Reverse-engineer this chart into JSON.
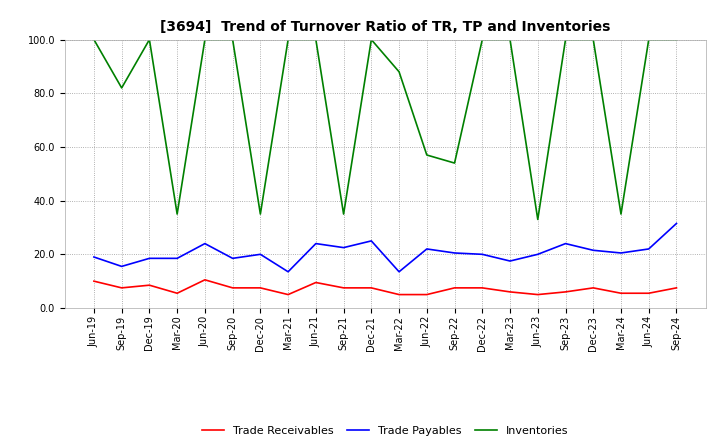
{
  "title": "[3694]  Trend of Turnover Ratio of TR, TP and Inventories",
  "xlabels": [
    "Jun-19",
    "Sep-19",
    "Dec-19",
    "Mar-20",
    "Jun-20",
    "Sep-20",
    "Dec-20",
    "Mar-21",
    "Jun-21",
    "Sep-21",
    "Dec-21",
    "Mar-22",
    "Jun-22",
    "Sep-22",
    "Dec-22",
    "Mar-23",
    "Jun-23",
    "Sep-23",
    "Dec-23",
    "Mar-24",
    "Jun-24",
    "Sep-24"
  ],
  "trade_receivables": [
    10.0,
    7.5,
    8.5,
    5.5,
    10.5,
    7.5,
    7.5,
    5.0,
    9.5,
    7.5,
    7.5,
    5.0,
    5.0,
    7.5,
    7.5,
    6.0,
    5.0,
    6.0,
    7.5,
    5.5,
    5.5,
    7.5
  ],
  "trade_payables": [
    19.0,
    15.5,
    18.5,
    18.5,
    24.0,
    18.5,
    20.0,
    13.5,
    24.0,
    22.5,
    25.0,
    13.5,
    22.0,
    20.5,
    20.0,
    17.5,
    20.0,
    24.0,
    21.5,
    20.5,
    22.0,
    31.5
  ],
  "inventories": [
    100.0,
    82.0,
    100.0,
    35.0,
    100.0,
    100.0,
    35.0,
    100.0,
    100.0,
    35.0,
    100.0,
    88.0,
    57.0,
    54.0,
    100.0,
    100.0,
    33.0,
    100.0,
    100.0,
    35.0,
    100.0,
    100.0
  ],
  "ylim": [
    0.0,
    100.0
  ],
  "yticks": [
    0.0,
    20.0,
    40.0,
    60.0,
    80.0,
    100.0
  ],
  "tr_color": "#ff0000",
  "tp_color": "#0000ff",
  "inv_color": "#008000",
  "bg_color": "#ffffff",
  "legend_labels": [
    "Trade Receivables",
    "Trade Payables",
    "Inventories"
  ],
  "title_fontsize": 10,
  "tick_fontsize": 7,
  "legend_fontsize": 8
}
